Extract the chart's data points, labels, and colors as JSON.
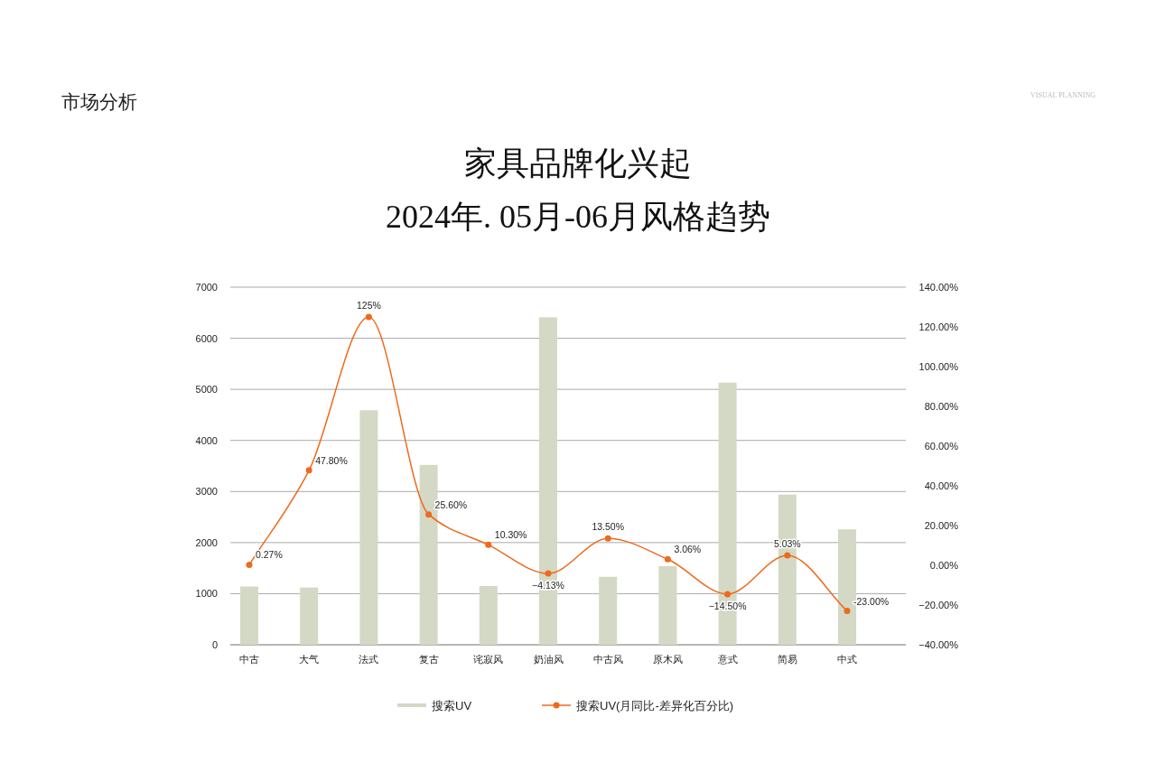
{
  "chart_data": {
    "type": "bar",
    "title": "家具品牌化兴起",
    "subtitle": "2024年. 05月-06月风格趋势",
    "annotations": [
      "市场分析",
      "VISUAL PLANNING"
    ],
    "categories": [
      "中古",
      "大气",
      "法式",
      "复古",
      "诧寂风",
      "奶油风",
      "中古风",
      "原木风",
      "意式",
      "简易",
      "中式"
    ],
    "series": [
      {
        "name": "搜索UV",
        "color": "#d3d9c4",
        "values": [
          1140,
          1120,
          4590,
          3520,
          1150,
          6410,
          1330,
          1540,
          5130,
          2940,
          2260
        ]
      },
      {
        "name": "搜索UV(月同比-差异化百分比)",
        "type": "line",
        "axis": "y2",
        "color": "#ee6a1c",
        "marker": "circle",
        "values": [
          0.27,
          47.8,
          125,
          25.6,
          10.3,
          -4.13,
          13.5,
          3.06,
          -14.5,
          5.03,
          -23
        ],
        "value_labels": [
          "0.27%",
          "47.80%",
          "125%",
          "25.60%",
          "10.30%",
          "−4.13%",
          "13.50%",
          "3.06%",
          "−14.50%",
          "5.03%",
          "-23.00%"
        ]
      }
    ],
    "ylim": [
      0,
      7000
    ],
    "yticks": [
      0,
      1000,
      2000,
      3000,
      4000,
      5000,
      6000,
      7000
    ],
    "y2lim": [
      -40,
      140
    ],
    "y2ticks": [
      {
        "value": -40,
        "label": "−40.00%"
      },
      {
        "value": -20,
        "label": "−20.00%"
      },
      {
        "value": 0,
        "label": "0.00%"
      },
      {
        "value": 20,
        "label": "20.00%"
      },
      {
        "value": 40,
        "label": "40.00%"
      },
      {
        "value": 60,
        "label": "60.00%"
      },
      {
        "value": 80,
        "label": "80.00%"
      },
      {
        "value": 100,
        "label": "100.00%"
      },
      {
        "value": 120,
        "label": "120.00%"
      },
      {
        "value": 140,
        "label": "140.00%"
      }
    ],
    "grid": "y",
    "legend": "bottom"
  }
}
